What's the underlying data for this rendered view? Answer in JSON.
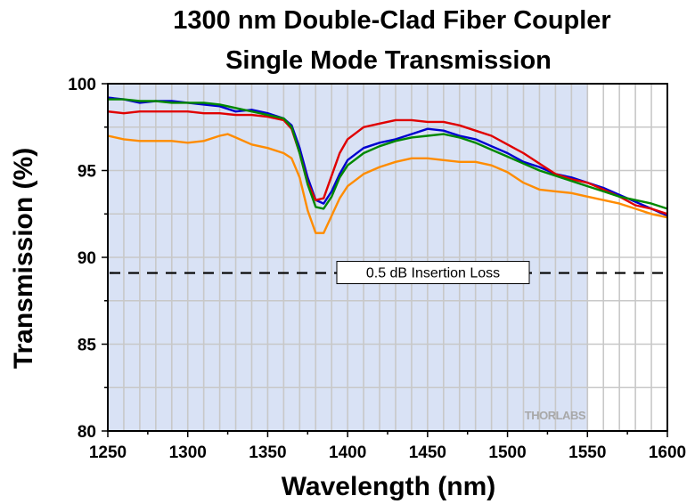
{
  "chart_data": {
    "type": "line",
    "title": [
      "1300 nm Double-Clad Fiber Coupler",
      "Single Mode Transmission"
    ],
    "xlabel": "Wavelength (nm)",
    "ylabel": "Transmission (%)",
    "xlim": [
      1250,
      1600
    ],
    "ylim": [
      80,
      100
    ],
    "xticks": [
      1250,
      1300,
      1350,
      1400,
      1450,
      1500,
      1550,
      1600
    ],
    "yticks": [
      80,
      85,
      90,
      95,
      100
    ],
    "grid": true,
    "shaded_region": {
      "x": [
        1250,
        1550
      ],
      "color": "#d9e2f5"
    },
    "reference_line": {
      "y": 89.1,
      "style": "dashed",
      "label": "0.5 dB Insertion Loss"
    },
    "logo": "THORLABS",
    "colors": {
      "grid": "#c8c8c8",
      "shade": "#d9e2f5"
    },
    "series": [
      {
        "color": "#0000d0",
        "x": [
          1250,
          1260,
          1270,
          1280,
          1290,
          1300,
          1310,
          1320,
          1330,
          1340,
          1350,
          1360,
          1365,
          1370,
          1375,
          1380,
          1385,
          1390,
          1395,
          1400,
          1410,
          1420,
          1430,
          1440,
          1450,
          1460,
          1470,
          1480,
          1490,
          1500,
          1510,
          1520,
          1530,
          1540,
          1550,
          1560,
          1570,
          1580,
          1590,
          1600
        ],
        "values": [
          99.2,
          99.1,
          98.9,
          99.0,
          99.0,
          98.9,
          98.8,
          98.7,
          98.4,
          98.5,
          98.3,
          98.0,
          97.6,
          96.3,
          94.6,
          93.3,
          93.1,
          93.8,
          94.8,
          95.6,
          96.3,
          96.6,
          96.8,
          97.1,
          97.4,
          97.3,
          97.0,
          96.8,
          96.4,
          96.0,
          95.5,
          95.2,
          94.8,
          94.6,
          94.3,
          94.0,
          93.6,
          93.2,
          92.8,
          92.4
        ]
      },
      {
        "color": "#e00000",
        "x": [
          1250,
          1260,
          1270,
          1280,
          1290,
          1300,
          1310,
          1320,
          1330,
          1340,
          1350,
          1360,
          1365,
          1370,
          1375,
          1380,
          1385,
          1390,
          1395,
          1400,
          1410,
          1420,
          1430,
          1440,
          1450,
          1460,
          1470,
          1480,
          1490,
          1500,
          1510,
          1520,
          1530,
          1540,
          1550,
          1560,
          1570,
          1580,
          1590,
          1600
        ],
        "values": [
          98.4,
          98.3,
          98.4,
          98.4,
          98.4,
          98.4,
          98.3,
          98.3,
          98.2,
          98.2,
          98.1,
          97.9,
          97.4,
          96.0,
          94.3,
          93.3,
          93.4,
          94.7,
          96.0,
          96.8,
          97.5,
          97.7,
          97.9,
          97.9,
          97.8,
          97.8,
          97.6,
          97.3,
          97.0,
          96.5,
          96.0,
          95.4,
          94.8,
          94.5,
          94.3,
          93.9,
          93.5,
          93.0,
          92.8,
          92.5
        ]
      },
      {
        "color": "#008800",
        "x": [
          1250,
          1260,
          1270,
          1280,
          1290,
          1300,
          1310,
          1320,
          1330,
          1340,
          1350,
          1360,
          1365,
          1370,
          1375,
          1380,
          1385,
          1390,
          1395,
          1400,
          1410,
          1420,
          1430,
          1440,
          1450,
          1460,
          1470,
          1480,
          1490,
          1500,
          1510,
          1520,
          1530,
          1540,
          1550,
          1560,
          1570,
          1580,
          1590,
          1600
        ],
        "values": [
          99.1,
          99.1,
          99.0,
          99.0,
          98.9,
          98.9,
          98.9,
          98.8,
          98.6,
          98.4,
          98.2,
          98.0,
          97.5,
          96.0,
          94.2,
          92.9,
          92.8,
          93.5,
          94.6,
          95.3,
          96.0,
          96.4,
          96.7,
          96.9,
          97.0,
          97.1,
          96.9,
          96.6,
          96.2,
          95.8,
          95.4,
          95.0,
          94.7,
          94.4,
          94.1,
          93.8,
          93.5,
          93.3,
          93.1,
          92.8
        ]
      },
      {
        "color": "#ff8c00",
        "x": [
          1250,
          1260,
          1270,
          1280,
          1290,
          1300,
          1310,
          1320,
          1325,
          1330,
          1340,
          1350,
          1360,
          1365,
          1370,
          1375,
          1380,
          1385,
          1390,
          1395,
          1400,
          1410,
          1420,
          1430,
          1440,
          1450,
          1460,
          1470,
          1480,
          1490,
          1500,
          1510,
          1520,
          1530,
          1540,
          1550,
          1560,
          1570,
          1580,
          1590,
          1600
        ],
        "values": [
          97.0,
          96.8,
          96.7,
          96.7,
          96.7,
          96.6,
          96.7,
          97.0,
          97.1,
          96.9,
          96.5,
          96.3,
          96.0,
          95.7,
          94.6,
          92.7,
          91.4,
          91.4,
          92.4,
          93.4,
          94.1,
          94.8,
          95.2,
          95.5,
          95.7,
          95.7,
          95.6,
          95.5,
          95.5,
          95.3,
          94.9,
          94.3,
          93.9,
          93.8,
          93.7,
          93.5,
          93.3,
          93.1,
          92.8,
          92.5,
          92.3
        ]
      }
    ]
  }
}
